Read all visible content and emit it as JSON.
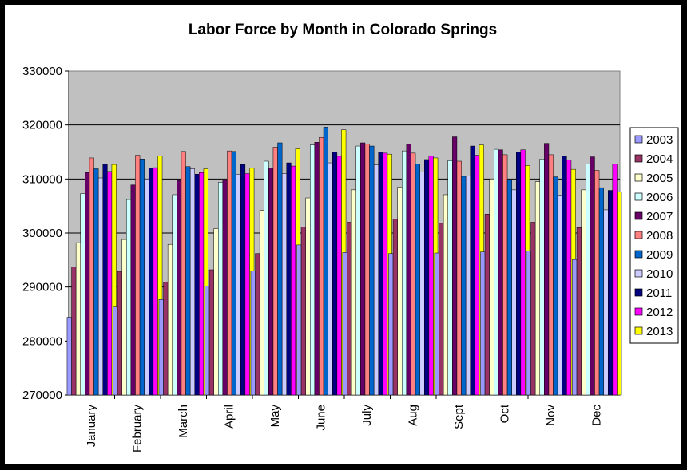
{
  "chart_data": {
    "type": "bar",
    "title": "Labor Force by Month in Colorado Springs",
    "xlabel": "",
    "ylabel": "",
    "ylim": [
      270000,
      330000
    ],
    "yticks": [
      270000,
      280000,
      290000,
      300000,
      310000,
      320000,
      330000
    ],
    "grid": true,
    "legend_position": "right",
    "plot_background": "#c0c0c0",
    "categories": [
      "January",
      "February",
      "March",
      "April",
      "May",
      "June",
      "July",
      "Aug",
      "Sept",
      "Oct",
      "Nov",
      "Dec"
    ],
    "series": [
      {
        "name": "2003",
        "color": "#9999ff",
        "values": [
          284400,
          286300,
          287700,
          290200,
          293000,
          297800,
          296400,
          296200,
          296300,
          296500,
          296700,
          295100
        ]
      },
      {
        "name": "2004",
        "color": "#993366",
        "values": [
          293700,
          292900,
          290900,
          293200,
          296200,
          301100,
          302000,
          302600,
          301800,
          303500,
          302000,
          301000
        ]
      },
      {
        "name": "2005",
        "color": "#ffffcc",
        "values": [
          298200,
          298800,
          297900,
          300800,
          304200,
          306500,
          308000,
          308500,
          307100,
          310000,
          309500,
          308000
        ]
      },
      {
        "name": "2006",
        "color": "#ccffff",
        "values": [
          307300,
          306200,
          307100,
          309400,
          313300,
          316300,
          316100,
          315200,
          313400,
          315500,
          313700,
          312800
        ]
      },
      {
        "name": "2007",
        "color": "#660066",
        "values": [
          311200,
          308900,
          309700,
          309800,
          312000,
          316800,
          316700,
          316500,
          317800,
          315400,
          316600,
          314100
        ]
      },
      {
        "name": "2008",
        "color": "#ff8080",
        "values": [
          313900,
          314400,
          315100,
          315200,
          315900,
          317700,
          316500,
          314800,
          313300,
          314500,
          314500,
          311600
        ]
      },
      {
        "name": "2009",
        "color": "#0066cc",
        "values": [
          311900,
          313700,
          312300,
          315100,
          316700,
          319600,
          316100,
          312800,
          310500,
          309800,
          310400,
          308400
        ]
      },
      {
        "name": "2010",
        "color": "#ccccff",
        "values": [
          310200,
          310000,
          311900,
          310900,
          311000,
          313000,
          312600,
          311300,
          310600,
          308000,
          307000,
          304300
        ]
      },
      {
        "name": "2011",
        "color": "#000080",
        "values": [
          312700,
          312000,
          310900,
          312700,
          313000,
          315000,
          315000,
          313600,
          316100,
          315000,
          314200,
          307900
        ]
      },
      {
        "name": "2012",
        "color": "#ff00ff",
        "values": [
          311400,
          312100,
          311200,
          311000,
          312400,
          314200,
          314800,
          314300,
          314400,
          315400,
          313500,
          312800
        ]
      },
      {
        "name": "2013",
        "color": "#ffff00",
        "values": [
          312700,
          314300,
          311900,
          312000,
          315600,
          319100,
          314600,
          313900,
          316300,
          312500,
          311800,
          307600
        ]
      }
    ]
  }
}
